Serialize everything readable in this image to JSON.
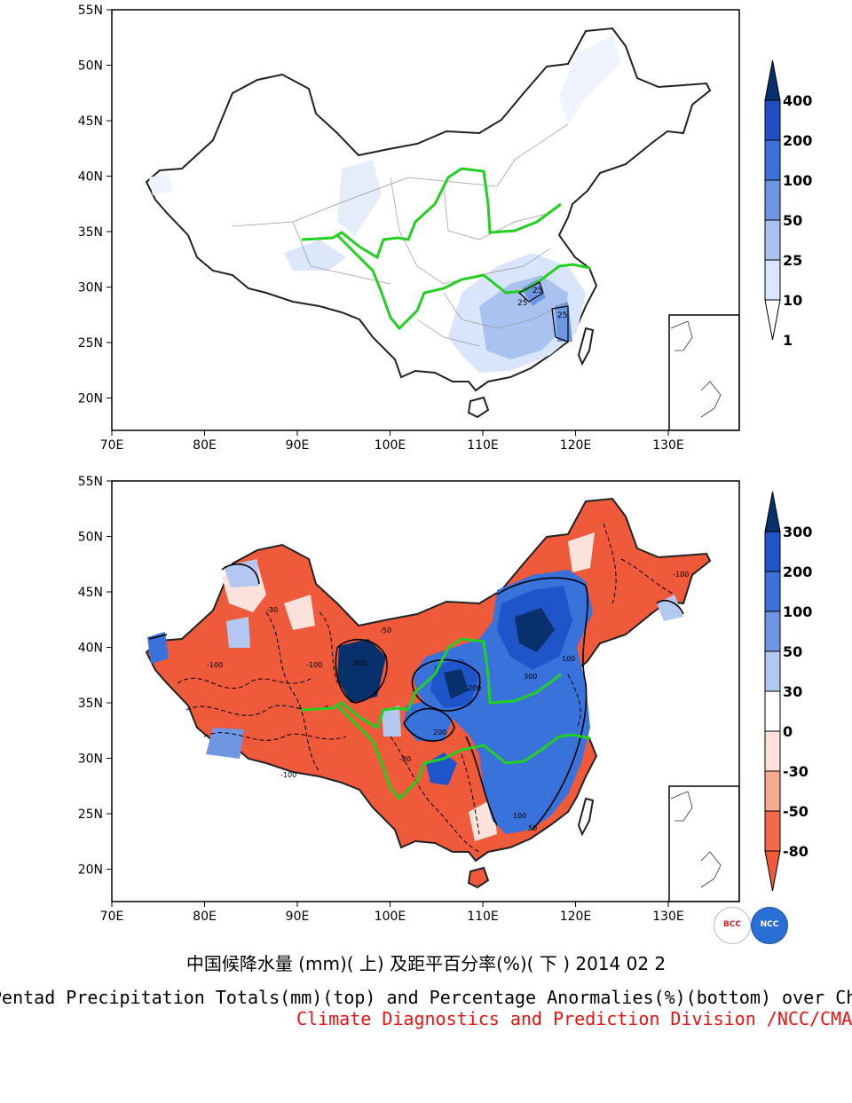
{
  "top_map": {
    "lat_labels": [
      "55N",
      "50N",
      "45N",
      "40N",
      "35N",
      "30N",
      "25N",
      "20N"
    ],
    "lon_labels": [
      "70E",
      "80E",
      "90E",
      "100E",
      "110E",
      "120E",
      "130E"
    ],
    "legend_labels": [
      "400",
      "200",
      "100",
      "50",
      "25",
      "10",
      "1"
    ],
    "legend_colors": [
      "#08306b",
      "#1f4fc0",
      "#3a72dc",
      "#6f96e3",
      "#a9c2ef",
      "#d9e5fa",
      "#ffffff"
    ],
    "contour_labels": [
      "25",
      "25",
      "25"
    ]
  },
  "bottom_map": {
    "lat_labels": [
      "55N",
      "50N",
      "45N",
      "40N",
      "35N",
      "30N",
      "25N",
      "20N"
    ],
    "lon_labels": [
      "70E",
      "80E",
      "90E",
      "100E",
      "110E",
      "120E",
      "130E"
    ],
    "legend_labels": [
      "300",
      "200",
      "100",
      "50",
      "30",
      "0",
      "-30",
      "-50",
      "-80"
    ],
    "legend_colors": [
      "#08306b",
      "#1f55c8",
      "#3a72dc",
      "#6f96e3",
      "#b3c8f0",
      "#ffffff",
      "#fbe2da",
      "#f7a98f",
      "#f26a4a",
      "#ef5a3a"
    ],
    "contour_labels": [
      "300",
      "300",
      "200",
      "200",
      "100",
      "100",
      "50",
      "-30",
      "-50",
      "-80",
      "-100",
      "-100",
      "-100",
      "-100"
    ]
  },
  "caption_cn": "中国候降水量 (mm)( 上) 及距平百分率(%)( 下 ) 2014 02 2",
  "caption_en": "Pentad Precipitation Totals(mm)(top) and Percentage Anormalies(%)(bottom) over China",
  "caption_division": "Climate Diagnostics and Prediction Division /NCC/CMA",
  "colors": {
    "river": "#22d022",
    "division_text": "#ee1111",
    "anomaly_negative": "#ef5a3a",
    "anomaly_positive": "#2c5fd0"
  },
  "logos": {
    "bcc": "BCC",
    "ncc": "NCC"
  }
}
